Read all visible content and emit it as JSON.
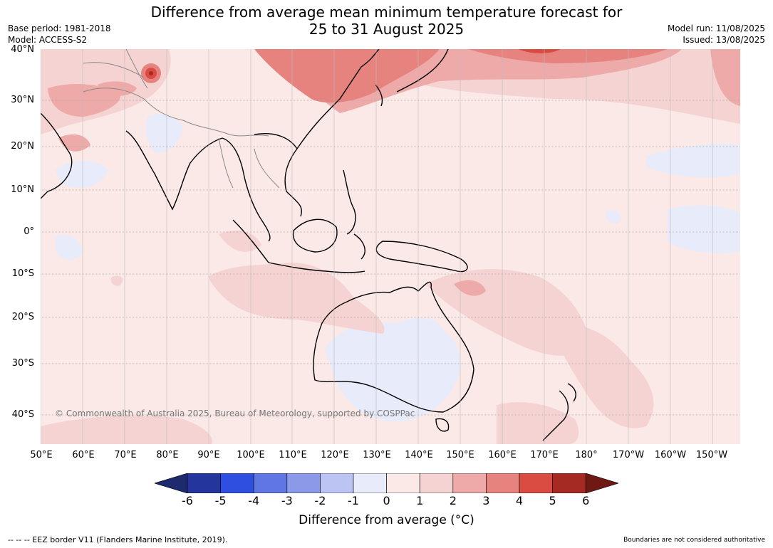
{
  "title_line1": "Difference from average mean minimum temperature forecast for",
  "title_line2": "25 to 31 August 2025",
  "base_period": "Base period: 1981-2018",
  "model": "Model: ACCESS-S2",
  "model_run": "Model run: 11/08/2025",
  "issued": "Issued: 13/08/2025",
  "map": {
    "lat_labels": [
      "40°N",
      "30°N",
      "20°N",
      "10°N",
      "0°",
      "10°S",
      "20°S",
      "30°S",
      "40°S"
    ],
    "lon_labels": [
      "50°E",
      "60°E",
      "70°E",
      "80°E",
      "90°E",
      "100°E",
      "110°E",
      "120°E",
      "130°E",
      "140°E",
      "150°E",
      "160°E",
      "170°E",
      "180°",
      "170°W",
      "160°W",
      "150°W"
    ],
    "copyright": "© Commonwealth of Australia 2025, Bureau of Meteorology, supported by COSPPac"
  },
  "colorbar": {
    "labels": [
      "-6",
      "-5",
      "-4",
      "-3",
      "-2",
      "-1",
      "0",
      "1",
      "2",
      "3",
      "4",
      "5",
      "6"
    ],
    "colors": [
      "#25359e",
      "#2e4fdf",
      "#5f76e3",
      "#8a9ae9",
      "#bcc4f4",
      "#e8ebfa",
      "#fbe9e7",
      "#f5d3d2",
      "#edaaa8",
      "#e7837f",
      "#da4c42",
      "#a52a23"
    ],
    "under_color": "#1e2a6e",
    "over_color": "#6e1914",
    "title": "Difference from average (°C)"
  },
  "footer_left": "-- -- -- EEZ border V11 (Flanders Marine Institute, 2019).",
  "footer_right": "Boundaries are not considered authoritative"
}
